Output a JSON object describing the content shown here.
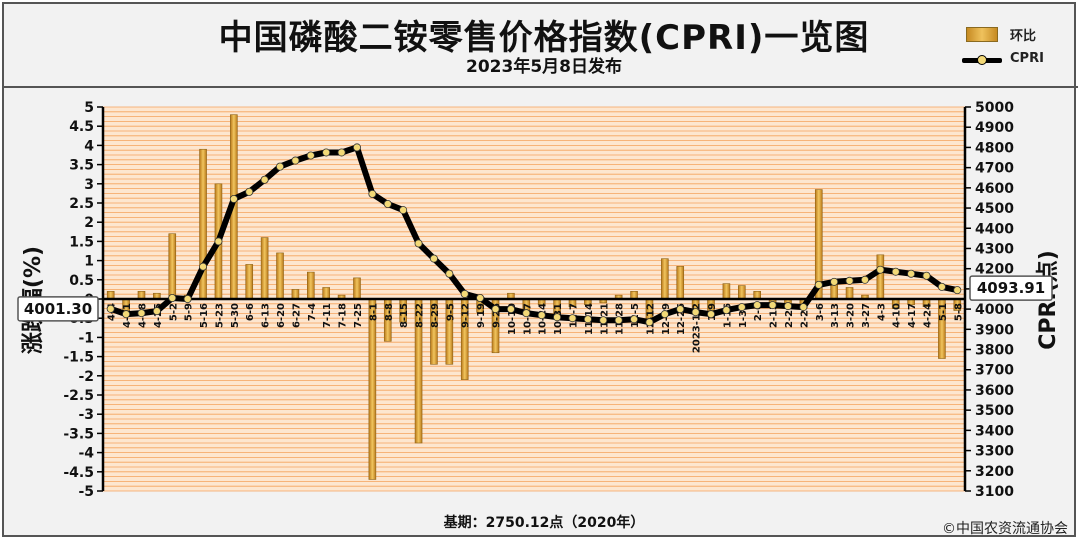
{
  "header": {
    "title": "中国磷酸二铵零售价格指数(CPRI)一览图",
    "subtitle": "2023年5月8日发布"
  },
  "legend": {
    "bar_label": "环比",
    "line_label": "CPRI"
  },
  "footer": {
    "base": "基期：2750.12点（2020年）",
    "copyright": "©中国农资流通协会"
  },
  "colors": {
    "plot_bg": "#fde6cf",
    "grid": "#f5a25b",
    "bar": "#e3a136",
    "line": "#000000",
    "marker": "#f3d977"
  },
  "chart_data": {
    "type": "bar",
    "ylabel_left": "涨跌幅(%)",
    "ylabel_right": "CPRI(点)",
    "ylim_left": [
      -5,
      5
    ],
    "ylim_right": [
      3100,
      5000
    ],
    "ticks_left": [
      "5",
      "4.5",
      "4",
      "3.5",
      "3",
      "2.5",
      "2",
      "1.5",
      "1",
      "0.5",
      "0",
      "-0.5",
      "-1",
      "-1.5",
      "-2",
      "-2.5",
      "-3",
      "-3.5",
      "-4",
      "-4.5",
      "-5"
    ],
    "ticks_right": [
      "5000",
      "4900",
      "4800",
      "4700",
      "4600",
      "4500",
      "4400",
      "4300",
      "4200",
      "4100",
      "4000",
      "3900",
      "3800",
      "3700",
      "3600",
      "3500",
      "3400",
      "3300",
      "3200",
      "3100"
    ],
    "first_label": "4001.30",
    "last_label": "4093.91",
    "categories": [
      "4-4",
      "4-11",
      "4-18",
      "4-25",
      "5-2",
      "5-9",
      "5-16",
      "5-23",
      "5-30",
      "6-6",
      "6-13",
      "6-20",
      "6-27",
      "7-4",
      "7-11",
      "7-18",
      "7-25",
      "8-1",
      "8-8",
      "8-15",
      "8-22",
      "8-29",
      "9-5",
      "9-12",
      "9-19",
      "9-26",
      "10-10",
      "10-17",
      "10-24",
      "10-31",
      "11-7",
      "11-14",
      "11-21",
      "11-28",
      "12-5",
      "12-12",
      "12-19",
      "12-26",
      "2023-1-2",
      "1-9",
      "1-16",
      "1-30",
      "2-6",
      "2-13",
      "2-20",
      "2-27",
      "3-6",
      "3-13",
      "3-20",
      "3-27",
      "4-3",
      "4-10",
      "4-17",
      "4-24",
      "5-1",
      "5-8"
    ],
    "series": [
      {
        "name": "环比",
        "values": [
          0.2,
          -0.3,
          0.2,
          0.15,
          1.7,
          0.1,
          3.9,
          3.0,
          4.8,
          0.9,
          1.6,
          1.2,
          0.25,
          0.7,
          0.3,
          0.1,
          0.55,
          -4.7,
          -1.1,
          -0.6,
          -3.75,
          -1.7,
          -1.7,
          -2.1,
          -0.35,
          -1.4,
          0.15,
          -0.4,
          -0.15,
          -0.4,
          -0.2,
          -0.15,
          -0.1,
          0.1,
          0.2,
          -0.5,
          1.05,
          0.85,
          -0.4,
          -0.3,
          0.4,
          0.35,
          0.2,
          -0.15,
          -0.15,
          -0.2,
          2.85,
          0.5,
          0.3,
          0.1,
          1.15,
          -0.25,
          -0.15,
          -0.2,
          -1.55,
          -0.3
        ]
      },
      {
        "name": "CPRI",
        "values": [
          4001.3,
          3975,
          3980,
          3990,
          4055,
          4050,
          4210,
          4335,
          4545,
          4580,
          4640,
          4705,
          4735,
          4760,
          4775,
          4775,
          4800,
          4570,
          4520,
          4490,
          4325,
          4250,
          4175,
          4075,
          4055,
          4000,
          4000,
          3980,
          3970,
          3960,
          3955,
          3950,
          3945,
          3945,
          3950,
          3935,
          3975,
          4000,
          3985,
          3975,
          3995,
          4010,
          4020,
          4020,
          4015,
          4010,
          4120,
          4135,
          4140,
          4145,
          4195,
          4185,
          4175,
          4165,
          4110,
          4093.91
        ]
      }
    ]
  }
}
